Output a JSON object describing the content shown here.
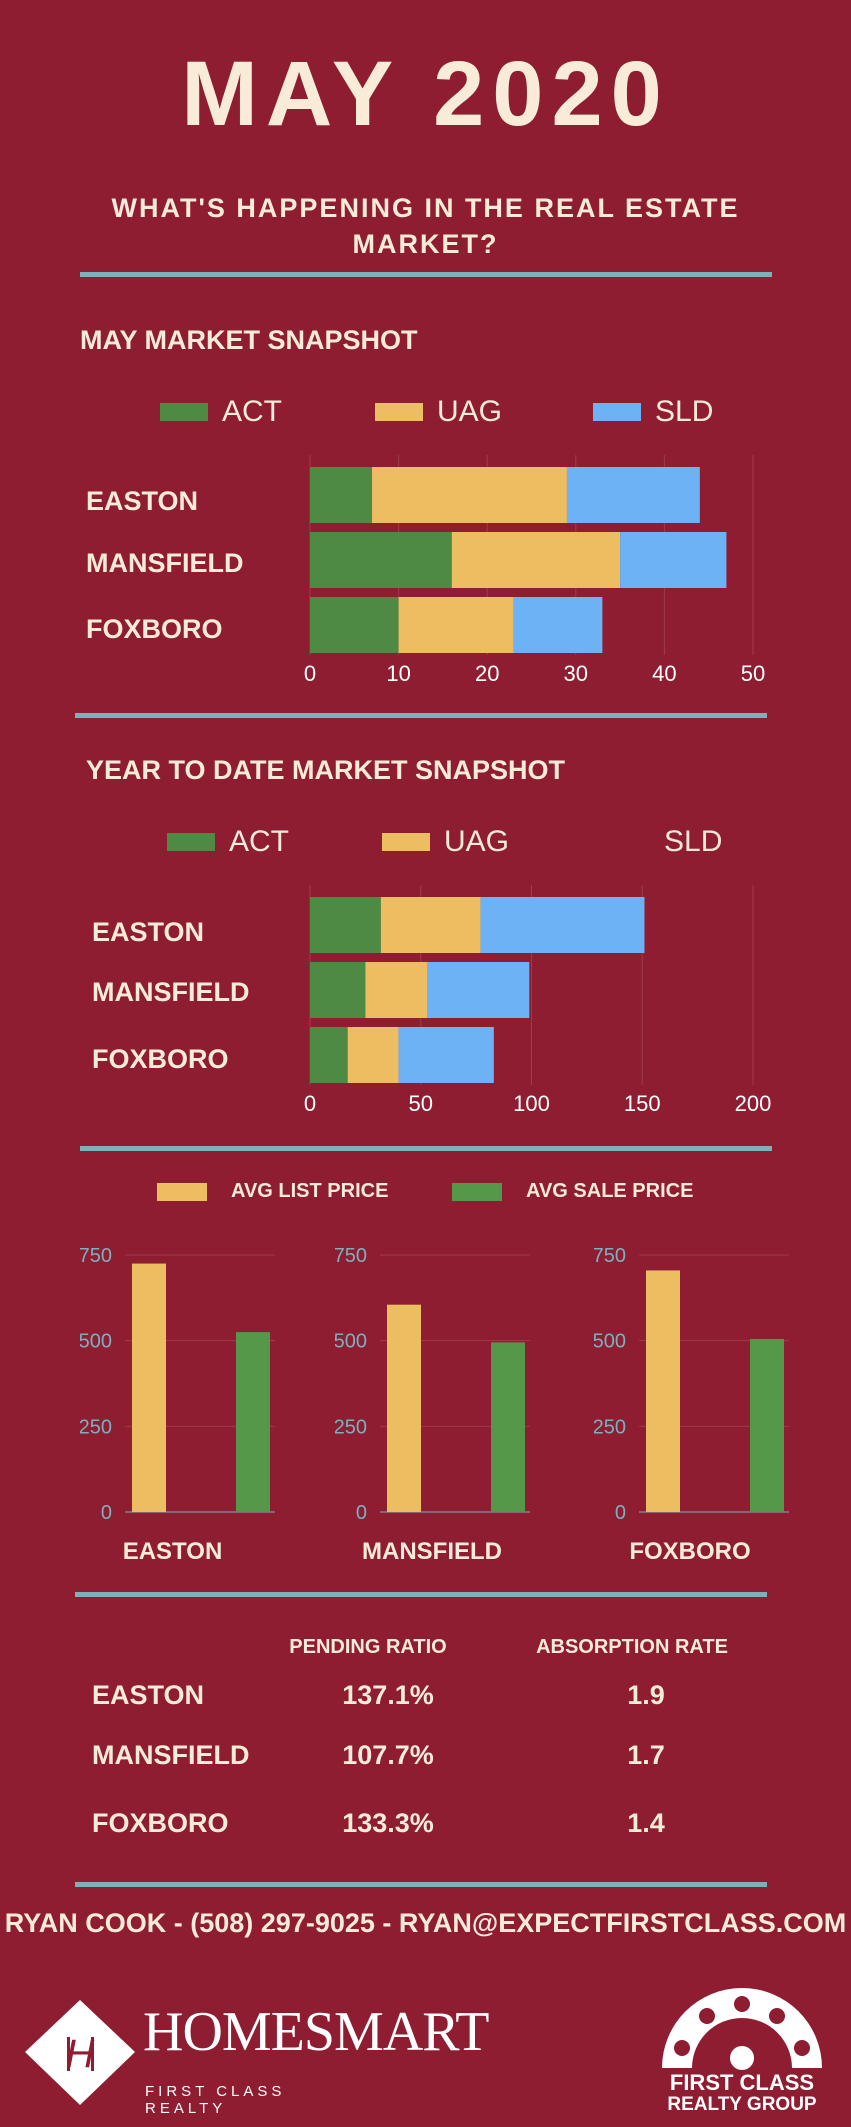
{
  "header": {
    "title": "MAY 2020",
    "subtitle": "WHAT'S HAPPENING IN THE REAL ESTATE MARKET?"
  },
  "colors": {
    "background": "#8E1D32",
    "act": "#4F8A44",
    "uag": "#EDBD62",
    "sld": "#6CB2F5",
    "list": "#EDBD62",
    "sale": "#55984A",
    "rule": "#7BB0BD",
    "text": "#F8ECD9"
  },
  "may_snapshot": {
    "title": "MAY MARKET SNAPSHOT",
    "legend": [
      "ACT",
      "UAG",
      "SLD"
    ],
    "cities": [
      "EASTON",
      "MANSFIELD",
      "FOXBORO"
    ],
    "ticks": [
      "0",
      "10",
      "20",
      "30",
      "40",
      "50"
    ]
  },
  "ytd_snapshot": {
    "title": "YEAR TO DATE MARKET SNAPSHOT",
    "legend": [
      "ACT",
      "UAG",
      "SLD"
    ],
    "cities": [
      "EASTON",
      "MANSFIELD",
      "FOXBORO"
    ],
    "ticks": [
      "0",
      "50",
      "100",
      "150",
      "200"
    ]
  },
  "price_section": {
    "legend": [
      "AVG LIST PRICE",
      "AVG SALE PRICE"
    ],
    "cities": [
      "EASTON",
      "MANSFIELD",
      "FOXBORO"
    ],
    "ticks": [
      "0",
      "250",
      "500",
      "750"
    ]
  },
  "chart_data": [
    {
      "type": "bar",
      "orientation": "horizontal",
      "stacked": true,
      "title": "MAY MARKET SNAPSHOT",
      "categories": [
        "EASTON",
        "MANSFIELD",
        "FOXBORO"
      ],
      "series": [
        {
          "name": "ACT",
          "values": [
            7,
            16,
            10
          ]
        },
        {
          "name": "UAG",
          "values": [
            22,
            19,
            13
          ]
        },
        {
          "name": "SLD",
          "values": [
            15,
            12,
            10
          ]
        }
      ],
      "xlim": [
        0,
        50
      ],
      "legend": "top",
      "grid": true
    },
    {
      "type": "bar",
      "orientation": "horizontal",
      "stacked": true,
      "title": "YEAR TO DATE MARKET SNAPSHOT",
      "categories": [
        "EASTON",
        "MANSFIELD",
        "FOXBORO"
      ],
      "series": [
        {
          "name": "ACT",
          "values": [
            32,
            25,
            17
          ]
        },
        {
          "name": "UAG",
          "values": [
            45,
            28,
            23
          ]
        },
        {
          "name": "SLD",
          "values": [
            74,
            46,
            43
          ]
        }
      ],
      "xlim": [
        0,
        200
      ],
      "legend": "top",
      "grid": true
    },
    {
      "type": "bar",
      "categories": [
        "EASTON"
      ],
      "series": [
        {
          "name": "AVG LIST PRICE",
          "values": [
            725
          ]
        },
        {
          "name": "AVG SALE PRICE",
          "values": [
            525
          ]
        }
      ],
      "xlabel": "EASTON",
      "ylim": [
        0,
        750
      ],
      "grid": true
    },
    {
      "type": "bar",
      "categories": [
        "MANSFIELD"
      ],
      "series": [
        {
          "name": "AVG LIST PRICE",
          "values": [
            605
          ]
        },
        {
          "name": "AVG SALE PRICE",
          "values": [
            495
          ]
        }
      ],
      "xlabel": "MANSFIELD",
      "ylim": [
        0,
        750
      ],
      "grid": true
    },
    {
      "type": "bar",
      "categories": [
        "FOXBORO"
      ],
      "series": [
        {
          "name": "AVG LIST PRICE",
          "values": [
            705
          ]
        },
        {
          "name": "AVG SALE PRICE",
          "values": [
            505
          ]
        }
      ],
      "xlabel": "FOXBORO",
      "ylim": [
        0,
        750
      ],
      "grid": true
    },
    {
      "type": "table",
      "columns": [
        "",
        "PENDING RATIO",
        "ABSORPTION RATE"
      ],
      "rows": [
        [
          "EASTON",
          "137.1%",
          "1.9"
        ],
        [
          "MANSFIELD",
          "107.7%",
          "1.7"
        ],
        [
          "FOXBORO",
          "133.3%",
          "1.4"
        ]
      ]
    }
  ],
  "footer": {
    "contact": "RYAN COOK - (508) 297-9025 - RYAN@EXPECTFIRSTCLASS.COM",
    "logo_left_name": "HOMESMART",
    "logo_left_tagline": "FIRST CLASS REALTY",
    "logo_right_line1": "FIRST CLASS",
    "logo_right_line2": "REALTY GROUP"
  }
}
